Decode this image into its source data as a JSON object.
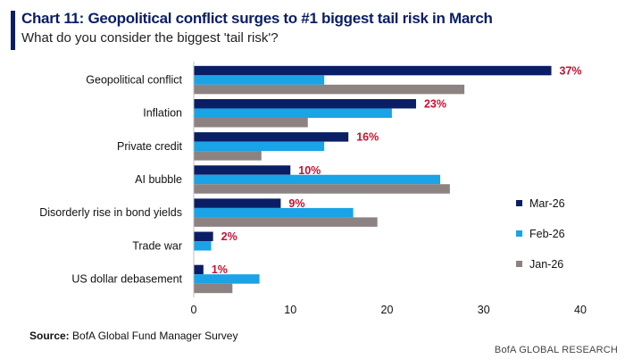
{
  "header": {
    "title": "Chart 11: Geopolitical conflict surges to #1 biggest tail risk in March",
    "subtitle": "What do you consider the biggest 'tail risk'?"
  },
  "footer": {
    "source_label": "Source:",
    "source_text": " BofA Global Fund Manager Survey",
    "branding": "BofA GLOBAL RESEARCH"
  },
  "chart_data": {
    "type": "bar",
    "orientation": "horizontal",
    "categories": [
      "Geopolitical conflict",
      "Inflation",
      "Private credit",
      "AI bubble",
      "Disorderly rise in bond yields",
      "Trade war",
      "US dollar debasement"
    ],
    "series": [
      {
        "name": "Mar-26",
        "color": "#0a1e66",
        "values": [
          37,
          23,
          16,
          10,
          9,
          2,
          1
        ]
      },
      {
        "name": "Feb-26",
        "color": "#1aa3e6",
        "values": [
          13.5,
          20.5,
          13.5,
          25.5,
          16.5,
          1.8,
          6.8
        ]
      },
      {
        "name": "Jan-26",
        "color": "#8c8282",
        "values": [
          28,
          11.8,
          7,
          26.5,
          19,
          0,
          4
        ]
      }
    ],
    "data_labels": [
      "37%",
      "23%",
      "16%",
      "10%",
      "9%",
      "2%",
      "1%"
    ],
    "data_label_color": "#c8102e",
    "xlim": [
      0,
      40
    ],
    "xticks": [
      0,
      10,
      20,
      30,
      40
    ],
    "grid": false,
    "legend_position": "right"
  }
}
